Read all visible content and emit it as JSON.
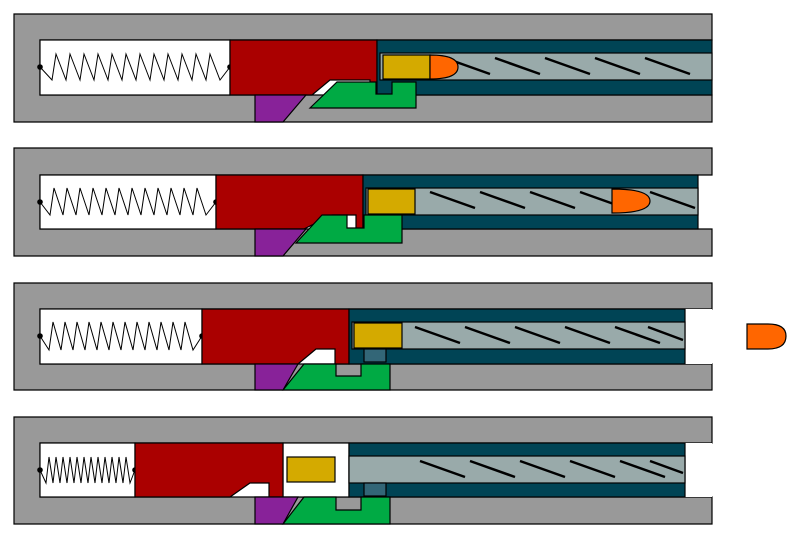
{
  "diagram": {
    "kind": "firearm-action-cycle",
    "panel_count": 4,
    "panels": [
      {
        "stage": 1,
        "bullet": "in-chamber",
        "barrel_forward": true,
        "spring": "extended"
      },
      {
        "stage": 2,
        "bullet": "in-barrel",
        "barrel_forward": false,
        "spring": "compressing"
      },
      {
        "stage": 3,
        "bullet": "exited",
        "barrel_forward": false,
        "spring": "compressing"
      },
      {
        "stage": 4,
        "bullet": "none",
        "barrel_forward": false,
        "spring": "compressed",
        "casing": "ejecting"
      }
    ],
    "colors": {
      "frame": "#999999",
      "slide": "#aa0000",
      "barrel": "#004455",
      "bore": "#99aaaa",
      "cartridge": "#d4aa00",
      "bullet": "#ff6600",
      "locking_block": "#00aa44",
      "trigger_bar": "#882299",
      "outline": "#000000"
    }
  }
}
